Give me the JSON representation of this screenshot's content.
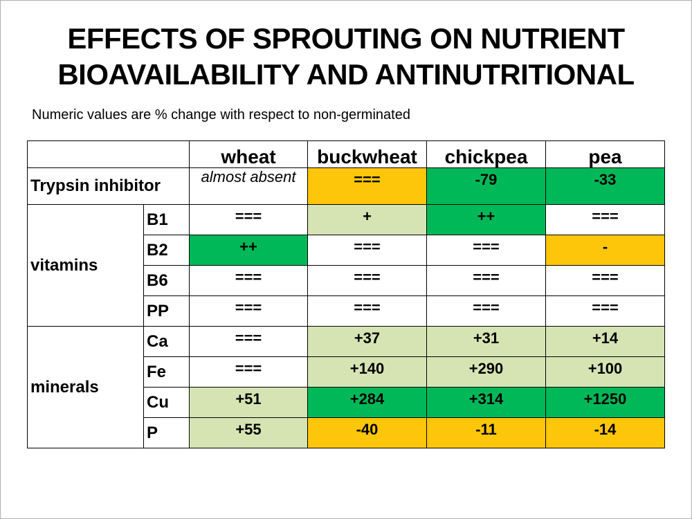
{
  "title_line1": "EFFECTS OF SPROUTING ON NUTRIENT",
  "title_line2": "BIOAVAILABILITY AND ANTINUTRITIONAL",
  "subtitle": "Numeric values are % change with respect to non-germinated",
  "columns": [
    "wheat",
    "buckwheat",
    "chickpea",
    "pea"
  ],
  "trypsin": {
    "label": "Trypsin inhibitor",
    "values": [
      "almost absent",
      "===",
      "-79",
      "-33"
    ]
  },
  "groups": {
    "vitamins": "vitamins",
    "minerals": "minerals"
  },
  "rows": {
    "B1": {
      "label": "B1",
      "values": [
        "===",
        "+",
        "++",
        "==="
      ]
    },
    "B2": {
      "label": "B2",
      "values": [
        "++",
        "===",
        "===",
        "-"
      ]
    },
    "B6": {
      "label": "B6",
      "values": [
        "===",
        "===",
        "===",
        "==="
      ]
    },
    "PP": {
      "label": "PP",
      "values": [
        "===",
        "===",
        "===",
        "==="
      ]
    },
    "Ca": {
      "label": "Ca",
      "values": [
        "===",
        "+37",
        "+31",
        "+14"
      ]
    },
    "Fe": {
      "label": "Fe",
      "values": [
        "===",
        "+140",
        "+290",
        "+100"
      ]
    },
    "Cu": {
      "label": "Cu",
      "values": [
        "+51",
        "+284",
        "+314",
        "+1250"
      ]
    },
    "P": {
      "label": "P",
      "values": [
        "+55",
        "-40",
        "-11",
        "-14"
      ]
    }
  },
  "colors": {
    "strong_green": "#00b858",
    "light_green": "#d6e4b4",
    "yellow": "#fdc60a",
    "white": "#ffffff"
  }
}
